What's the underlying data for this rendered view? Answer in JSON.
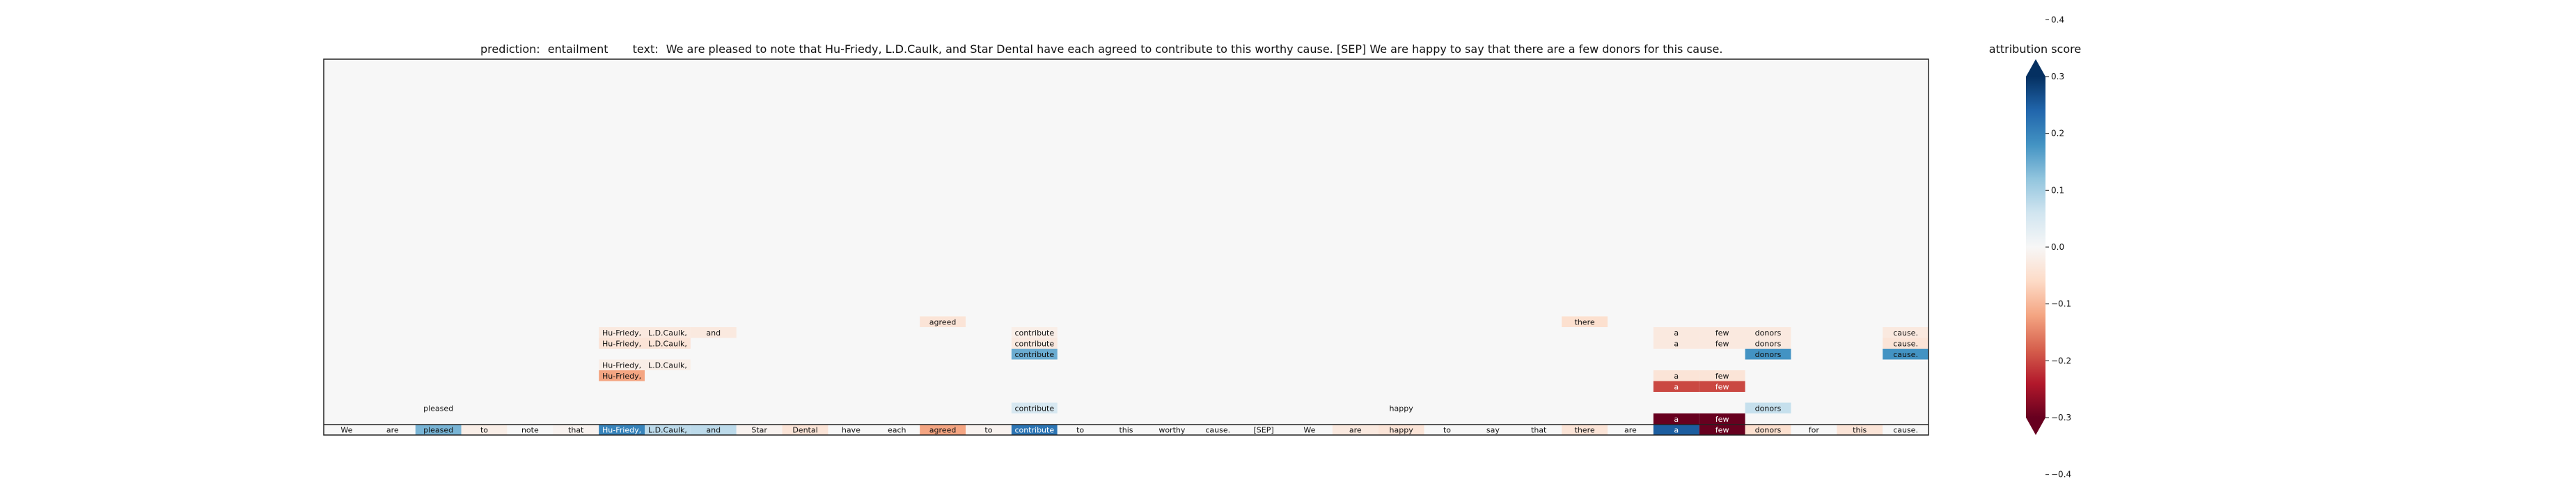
{
  "chart_data": {
    "type": "heatmap",
    "title": {
      "prediction_label": "prediction:",
      "prediction": "entailment",
      "text_label": "text:",
      "text": "We are pleased to note that Hu-Friedy, L.D.Caulk, and Star Dental have each agreed to contribute to this worthy cause. [SEP] We are happy to say that there are a few donors for this cause."
    },
    "colorbar": {
      "label": "attribution score",
      "ticks": [
        -0.4,
        -0.3,
        -0.2,
        -0.1,
        0.0,
        0.1,
        0.2,
        0.3,
        0.4
      ],
      "tick_labels": [
        "−0.4",
        "−0.3",
        "−0.2",
        "−0.1",
        "0.0",
        "0.1",
        "0.2",
        "0.3",
        "0.4"
      ],
      "range": [
        -0.3,
        0.3
      ],
      "extend": "both"
    },
    "tokens": [
      {
        "text": "We",
        "score": 0.0
      },
      {
        "text": "are",
        "score": 0.0
      },
      {
        "text": "pleased",
        "score": 0.14
      },
      {
        "text": "to",
        "score": -0.02
      },
      {
        "text": "note",
        "score": 0.0
      },
      {
        "text": "that",
        "score": -0.01
      },
      {
        "text": "Hu-Friedy,",
        "score": 0.2
      },
      {
        "text": "L.D.Caulk,",
        "score": 0.08
      },
      {
        "text": "and",
        "score": 0.08
      },
      {
        "text": "Star",
        "score": -0.01
      },
      {
        "text": "Dental",
        "score": -0.04
      },
      {
        "text": "have",
        "score": 0.0
      },
      {
        "text": "each",
        "score": 0.0
      },
      {
        "text": "agreed",
        "score": -0.12
      },
      {
        "text": "to",
        "score": -0.01
      },
      {
        "text": "contribute",
        "score": 0.22
      },
      {
        "text": "to",
        "score": 0.0
      },
      {
        "text": "this",
        "score": 0.0
      },
      {
        "text": "worthy",
        "score": 0.0
      },
      {
        "text": "cause.",
        "score": 0.0
      },
      {
        "text": "[SEP]",
        "score": 0.0
      },
      {
        "text": "We",
        "score": 0.0
      },
      {
        "text": "are",
        "score": -0.03
      },
      {
        "text": "happy",
        "score": -0.04
      },
      {
        "text": "to",
        "score": 0.0
      },
      {
        "text": "say",
        "score": 0.0
      },
      {
        "text": "that",
        "score": 0.0
      },
      {
        "text": "there",
        "score": -0.04
      },
      {
        "text": "are",
        "score": 0.0
      },
      {
        "text": "a",
        "score": 0.25
      },
      {
        "text": "few",
        "score": -0.3
      },
      {
        "text": "donors",
        "score": -0.05
      },
      {
        "text": "for",
        "score": 0.0
      },
      {
        "text": "this",
        "score": -0.04
      },
      {
        "text": "cause.",
        "score": 0.0
      }
    ],
    "annotations": [
      {
        "col": 2,
        "level": 2,
        "text": "pleased",
        "score": 0.0
      },
      {
        "col": 6,
        "level": 5,
        "text": "Hu-Friedy,",
        "score": -0.12
      },
      {
        "col": 6,
        "level": 6,
        "text": "Hu-Friedy,",
        "score": -0.02
      },
      {
        "col": 7,
        "level": 6,
        "text": "L.D.Caulk,",
        "score": -0.02
      },
      {
        "col": 6,
        "level": 8,
        "text": "Hu-Friedy,",
        "score": -0.04
      },
      {
        "col": 7,
        "level": 8,
        "text": "L.D.Caulk,",
        "score": -0.04
      },
      {
        "col": 6,
        "level": 9,
        "text": "Hu-Friedy,",
        "score": -0.03
      },
      {
        "col": 7,
        "level": 9,
        "text": "L.D.Caulk,",
        "score": -0.03
      },
      {
        "col": 8,
        "level": 9,
        "text": "and",
        "score": -0.03
      },
      {
        "col": 13,
        "level": 10,
        "text": "agreed",
        "score": -0.04
      },
      {
        "col": 15,
        "level": 2,
        "text": "contribute",
        "score": 0.05
      },
      {
        "col": 15,
        "level": 7,
        "text": "contribute",
        "score": 0.15
      },
      {
        "col": 15,
        "level": 8,
        "text": "contribute",
        "score": -0.03
      },
      {
        "col": 15,
        "level": 9,
        "text": "contribute",
        "score": -0.02
      },
      {
        "col": 23,
        "level": 2,
        "text": "happy",
        "score": 0.0
      },
      {
        "col": 27,
        "level": 10,
        "text": "there",
        "score": -0.05
      },
      {
        "col": 29,
        "level": 1,
        "text": "a",
        "score": -0.35
      },
      {
        "col": 30,
        "level": 1,
        "text": "few",
        "score": -0.35
      },
      {
        "col": 29,
        "level": 4,
        "text": "a",
        "score": -0.2
      },
      {
        "col": 30,
        "level": 4,
        "text": "few",
        "score": -0.2
      },
      {
        "col": 29,
        "level": 5,
        "text": "a",
        "score": -0.04
      },
      {
        "col": 30,
        "level": 5,
        "text": "few",
        "score": -0.04
      },
      {
        "col": 29,
        "level": 8,
        "text": "a",
        "score": -0.03
      },
      {
        "col": 30,
        "level": 8,
        "text": "few",
        "score": -0.03
      },
      {
        "col": 31,
        "level": 8,
        "text": "donors",
        "score": -0.03
      },
      {
        "col": 29,
        "level": 9,
        "text": "a",
        "score": -0.03
      },
      {
        "col": 30,
        "level": 9,
        "text": "few",
        "score": -0.03
      },
      {
        "col": 31,
        "level": 9,
        "text": "donors",
        "score": -0.03
      },
      {
        "col": 31,
        "level": 2,
        "text": "donors",
        "score": 0.07
      },
      {
        "col": 31,
        "level": 7,
        "text": "donors",
        "score": 0.18
      },
      {
        "col": 34,
        "level": 7,
        "text": "cause.",
        "score": 0.18
      },
      {
        "col": 34,
        "level": 8,
        "text": "cause.",
        "score": -0.04
      },
      {
        "col": 34,
        "level": 9,
        "text": "cause.",
        "score": -0.03
      }
    ]
  }
}
